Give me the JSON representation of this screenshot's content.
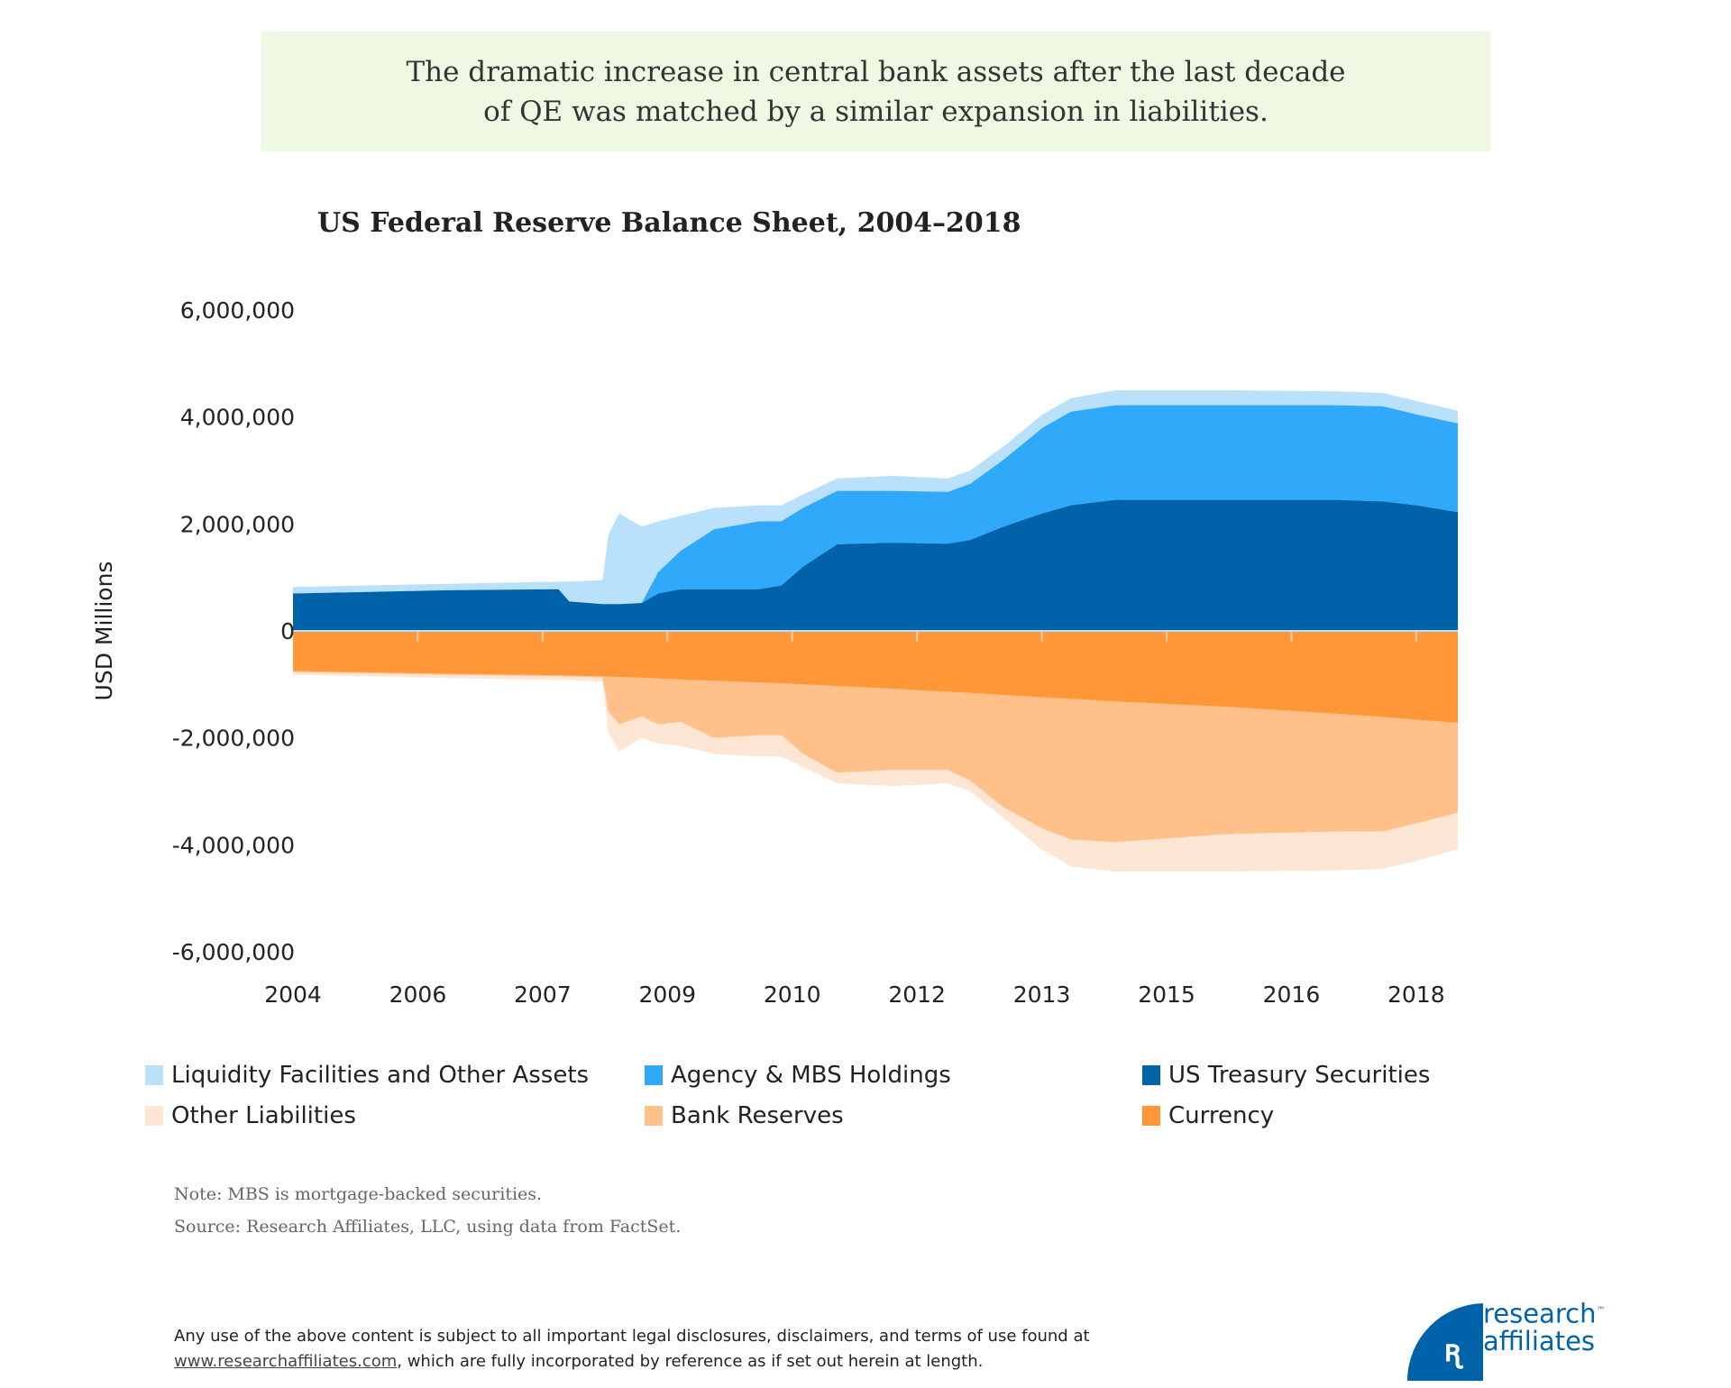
{
  "headline": {
    "line1": "The dramatic increase in central bank assets after the last decade",
    "line2": "of QE was matched by a similar expansion in liabilities."
  },
  "notes": {
    "note": "Note: MBS is mortgage-backed securities.",
    "source": "Source: Research Affiliates, LLC, using data from FactSet."
  },
  "disclaimer": {
    "line1": "Any use of the above content is subject to all important legal disclosures, disclaimers, and terms of use found at",
    "link": "www.researchaffiliates.com",
    "line2_rest": ", which are fully incorporated by reference as if set out herein at length."
  },
  "logo": {
    "line1": "research",
    "line2": "affiliates",
    "tm": "™"
  },
  "chart_data": {
    "type": "area",
    "stacked": true,
    "title": "US Federal Reserve Balance Sheet, 2004–2018",
    "xlabel": "",
    "ylabel": "USD Millions",
    "xlim": [
      2004,
      2018
    ],
    "ylim": [
      -6000000,
      6000000
    ],
    "yticks": [
      6000000,
      4000000,
      2000000,
      0,
      -2000000,
      -4000000,
      -6000000
    ],
    "ytick_labels": [
      "6,000,000",
      "4,000,000",
      "2,000,000",
      "0",
      "-2,000,000",
      "-4,000,000",
      "-6,000,000"
    ],
    "xticks": [
      2004,
      2005.5,
      2007,
      2008.5,
      2010,
      2011.5,
      2013,
      2014.5,
      2016,
      2017.5
    ],
    "xtick_labels": [
      "2004",
      "2006",
      "2007",
      "2009",
      "2010",
      "2012",
      "2013",
      "2015",
      "2016",
      "2018"
    ],
    "grid": false,
    "legend_position": "bottom",
    "x": [
      2004.0,
      2005.85,
      2007.19,
      2007.32,
      2007.72,
      2007.79,
      2007.92,
      2008.19,
      2008.39,
      2008.66,
      2009.06,
      2009.6,
      2009.87,
      2010.13,
      2010.54,
      2011.2,
      2011.87,
      2012.14,
      2012.54,
      2013.01,
      2013.35,
      2013.88,
      2015.22,
      2016.56,
      2017.1,
      2017.5,
      2018.0
    ],
    "series": [
      {
        "name": "US Treasury Securities",
        "side": "assets",
        "color": "#0062a8",
        "values": [
          700000,
          760000,
          780000,
          550000,
          500000,
          500000,
          500000,
          520000,
          700000,
          780000,
          780000,
          780000,
          850000,
          1200000,
          1620000,
          1650000,
          1630000,
          1700000,
          1950000,
          2200000,
          2350000,
          2450000,
          2450000,
          2450000,
          2420000,
          2350000,
          2220000
        ]
      },
      {
        "name": "Agency & MBS Holdings",
        "side": "assets",
        "color": "#31a9fb",
        "values": [
          0,
          0,
          0,
          0,
          0,
          0,
          0,
          0,
          400000,
          720000,
          1120000,
          1270000,
          1200000,
          1100000,
          1000000,
          970000,
          970000,
          1050000,
          1250000,
          1600000,
          1750000,
          1770000,
          1770000,
          1770000,
          1780000,
          1700000,
          1660000
        ]
      },
      {
        "name": "Liquidity Facilities and Other Assets",
        "side": "assets",
        "color": "#b9e1fc",
        "values": [
          120000,
          120000,
          140000,
          370000,
          450000,
          1300000,
          1700000,
          1430000,
          950000,
          650000,
          400000,
          300000,
          300000,
          250000,
          230000,
          280000,
          250000,
          250000,
          250000,
          250000,
          250000,
          280000,
          280000,
          260000,
          250000,
          250000,
          240000
        ]
      },
      {
        "name": "Currency",
        "side": "liabilities",
        "color": "#ff9739",
        "values": [
          -750000,
          -800000,
          -830000,
          -835000,
          -850000,
          -855000,
          -860000,
          -875000,
          -890000,
          -910000,
          -930000,
          -965000,
          -980000,
          -1000000,
          -1030000,
          -1080000,
          -1140000,
          -1160000,
          -1200000,
          -1240000,
          -1270000,
          -1320000,
          -1420000,
          -1550000,
          -1610000,
          -1660000,
          -1720000
        ]
      },
      {
        "name": "Bank Reserves",
        "side": "liabilities",
        "color": "#ffc08a",
        "values": [
          -20000,
          -20000,
          -20000,
          -20000,
          -20000,
          -645000,
          -890000,
          -725000,
          -860000,
          -790000,
          -1070000,
          -985000,
          -970000,
          -1300000,
          -1620000,
          -1520000,
          -1460000,
          -1640000,
          -2100000,
          -2460000,
          -2630000,
          -2630000,
          -2380000,
          -2200000,
          -2140000,
          -1940000,
          -1680000
        ]
      },
      {
        "name": "Other Liabilities",
        "side": "liabilities",
        "color": "#fde6d4",
        "values": [
          -50000,
          -60000,
          -70000,
          -65000,
          -80000,
          -400000,
          -500000,
          -400000,
          -350000,
          -450000,
          -300000,
          -400000,
          -400000,
          -250000,
          -200000,
          -300000,
          -250000,
          -200000,
          -200000,
          -400000,
          -500000,
          -550000,
          -700000,
          -730000,
          -700000,
          -700000,
          -680000
        ]
      }
    ],
    "legend_order": [
      "Liquidity Facilities and Other Assets",
      "Agency & MBS Holdings",
      "US Treasury Securities",
      "Other Liabilities",
      "Bank Reserves",
      "Currency"
    ]
  }
}
